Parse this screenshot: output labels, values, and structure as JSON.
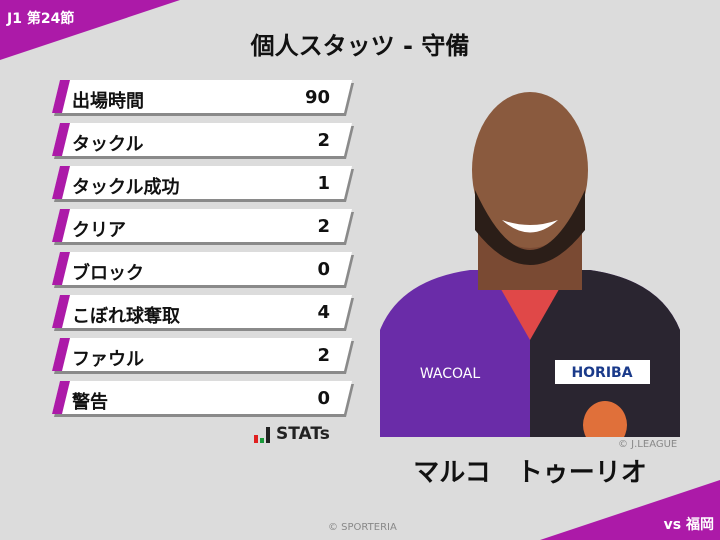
{
  "header": {
    "round": "J1 第24節",
    "title": "個人スタッツ - 守備",
    "opponent": "vs 福岡"
  },
  "colors": {
    "accent": "#ac1aa8",
    "background": "#dcdcdc"
  },
  "stats": [
    {
      "label": "出場時間",
      "value": "90"
    },
    {
      "label": "タックル",
      "value": "2"
    },
    {
      "label": "タックル成功",
      "value": "1"
    },
    {
      "label": "クリア",
      "value": "2"
    },
    {
      "label": "ブロック",
      "value": "0"
    },
    {
      "label": "こぼれ球奪取",
      "value": "4"
    },
    {
      "label": "ファウル",
      "value": "2"
    },
    {
      "label": "警告",
      "value": "0"
    }
  ],
  "brand": {
    "stats_logo": "STATs",
    "photo_credit": "© J.LEAGUE",
    "copyright": "© SPORTERIA"
  },
  "player": {
    "name": "マルコ　トゥーリオ",
    "shirt_sponsor": "WACOAL",
    "sleeve_sponsor": "HORIBA"
  }
}
